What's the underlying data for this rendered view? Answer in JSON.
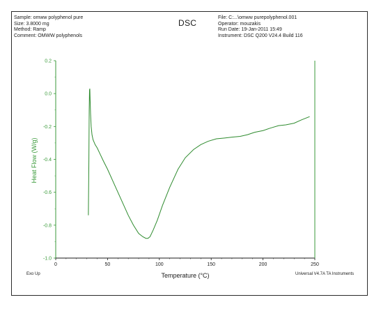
{
  "header": {
    "left_lines": [
      "Sample: omww polyphenol pure",
      "Size:  3.8000 mg",
      "Method: Ramp",
      "Comment: OMWW polyphenols"
    ],
    "title": "DSC",
    "right_lines": [
      "File: C:...\\omww purepolyphenol.001",
      "Operator: mouzakis",
      "Run Date: 19-Jan-2011 15:49",
      "Instrument: DSC Q200 V24.4 Build 116"
    ]
  },
  "footer": {
    "left": "Exo Up",
    "right": "Universal V4.7A TA Instruments"
  },
  "colors": {
    "curve": "#2e8b2e",
    "axis": "#3a9a3a",
    "ylabel": "#3a9a3a",
    "text": "#1a1a1a"
  },
  "chart_data": {
    "type": "line",
    "title": "DSC",
    "xlabel": "Temperature (°C)",
    "ylabel": "Heat Flow (W/g)",
    "xlim": [
      0,
      250
    ],
    "ylim": [
      -1.0,
      0.2
    ],
    "xticks": [
      0,
      50,
      100,
      150,
      200,
      250
    ],
    "yticks": [
      0.2,
      0.0,
      -0.2,
      -0.4,
      -0.6,
      -0.8,
      -1.0
    ],
    "xtick_labels": [
      "0",
      "50",
      "100",
      "150",
      "200",
      "250"
    ],
    "ytick_labels": [
      "0.2",
      "0.0",
      "-0.2",
      "-0.4",
      "-0.6",
      "-0.8",
      "-1.0"
    ],
    "grid": false,
    "series": [
      {
        "x": [
          31.5,
          32.0,
          32.3,
          32.6,
          32.9,
          33.2,
          33.6,
          34.2,
          35.0,
          36.0,
          38.0,
          40.0,
          43.0,
          46.0,
          50.0,
          55.0,
          60.0,
          65.0,
          70.0,
          75.0,
          80.0,
          84.0,
          87.0,
          89.0,
          91.0,
          94.0,
          98.0,
          103.0,
          110.0,
          118.0,
          125.0,
          133.0,
          140.0,
          147.0,
          155.0,
          163.0,
          170.0,
          178.0,
          185.0,
          192.0,
          200.0,
          207.0,
          215.0,
          222.0,
          230.0,
          237.0,
          245.0
        ],
        "y": [
          -0.74,
          -0.4,
          -0.1,
          0.02,
          0.03,
          -0.04,
          -0.12,
          -0.2,
          -0.25,
          -0.28,
          -0.31,
          -0.33,
          -0.37,
          -0.41,
          -0.46,
          -0.53,
          -0.6,
          -0.67,
          -0.74,
          -0.8,
          -0.85,
          -0.87,
          -0.88,
          -0.88,
          -0.87,
          -0.83,
          -0.77,
          -0.68,
          -0.57,
          -0.46,
          -0.39,
          -0.34,
          -0.31,
          -0.29,
          -0.275,
          -0.27,
          -0.265,
          -0.26,
          -0.25,
          -0.235,
          -0.225,
          -0.21,
          -0.195,
          -0.19,
          -0.18,
          -0.16,
          -0.14
        ]
      }
    ]
  }
}
